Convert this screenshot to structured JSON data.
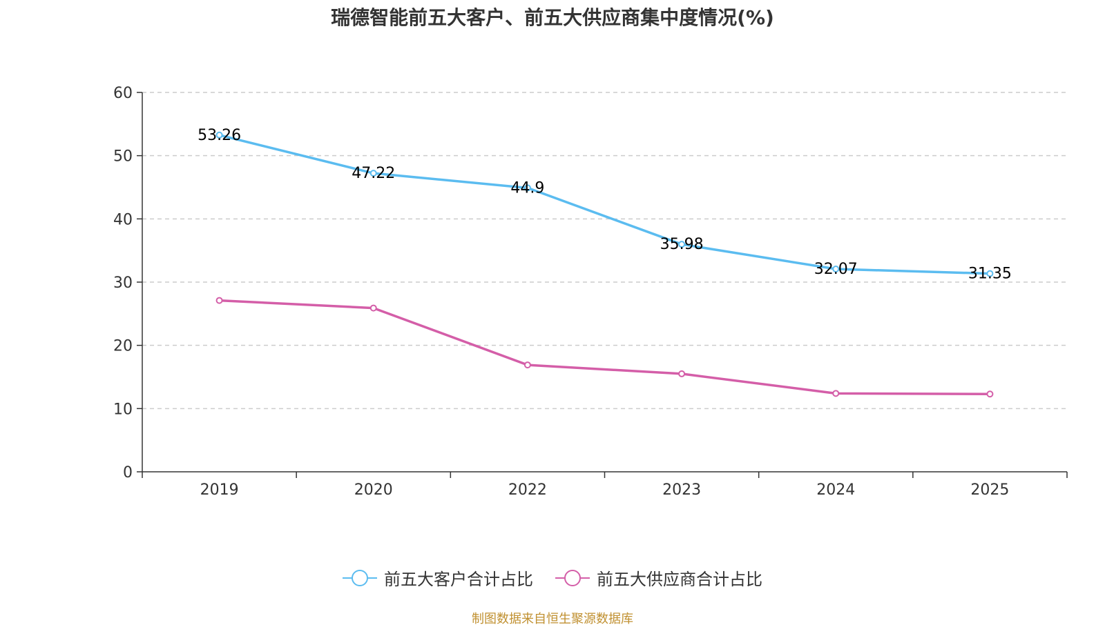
{
  "colors": {
    "customers": "#5bbcf0",
    "suppliers": "#d45ea8",
    "grid": "#cccccc",
    "axis": "#333333"
  },
  "chart_data": {
    "type": "line",
    "title": "瑞德智能前五大客户、前五大供应商集中度情况(%)",
    "categories": [
      "2019",
      "2020",
      "2022",
      "2023",
      "2024",
      "2025"
    ],
    "ylim": [
      0,
      60
    ],
    "yticks": [
      0,
      10,
      20,
      30,
      40,
      50,
      60
    ],
    "grid": true,
    "legend_position": "bottom-center",
    "series": [
      {
        "name": "前五大客户合计占比",
        "values": [
          53.26,
          47.22,
          44.9,
          35.98,
          32.07,
          31.35
        ],
        "show_labels": true,
        "labels": [
          "53.26",
          "47.22",
          "44.9",
          "35.98",
          "32.07",
          "31.35"
        ]
      },
      {
        "name": "前五大供应商合计占比",
        "values": [
          27.1,
          25.9,
          16.9,
          15.5,
          12.4,
          12.3
        ],
        "show_labels": false
      }
    ]
  },
  "source": "制图数据来自恒生聚源数据库"
}
